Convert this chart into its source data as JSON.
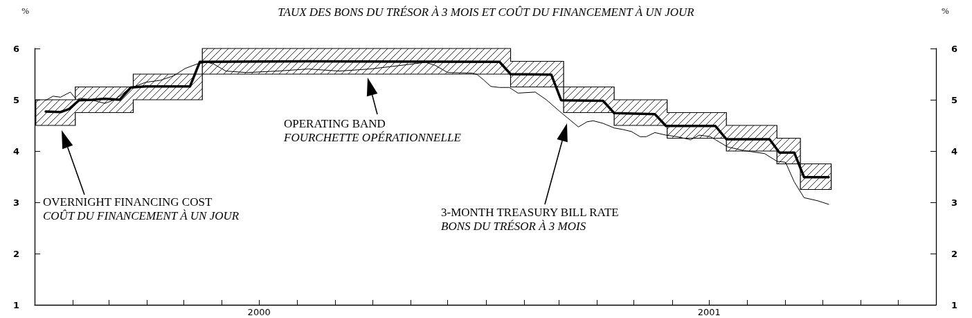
{
  "chart_data": {
    "type": "line",
    "title": "TAUX DES BONS DU TRÉSOR À 3 MOIS ET COÛT DU FINANCEMENT À UN JOUR",
    "ylabel": "%",
    "y2label": "%",
    "xlim": [
      "2000-01-01",
      "2002-01-01"
    ],
    "xticks": [
      {
        "value": "2000-01-01",
        "label": null
      },
      {
        "value": "2000-02-01",
        "label": null
      },
      {
        "value": "2000-03-01",
        "label": null
      },
      {
        "value": "2000-04-01",
        "label": null
      },
      {
        "value": "2000-05-01",
        "label": null
      },
      {
        "value": "2000-06-01",
        "label": null
      },
      {
        "value": "2000-07-01",
        "label": "2000"
      },
      {
        "value": "2000-08-01",
        "label": null
      },
      {
        "value": "2000-09-01",
        "label": null
      },
      {
        "value": "2000-10-01",
        "label": null
      },
      {
        "value": "2000-11-01",
        "label": null
      },
      {
        "value": "2000-12-01",
        "label": null
      },
      {
        "value": "2001-01-01",
        "label": null
      },
      {
        "value": "2001-02-01",
        "label": null
      },
      {
        "value": "2001-03-01",
        "label": null
      },
      {
        "value": "2001-04-01",
        "label": null
      },
      {
        "value": "2001-05-01",
        "label": null
      },
      {
        "value": "2001-06-01",
        "label": null
      },
      {
        "value": "2001-07-01",
        "label": "2001"
      },
      {
        "value": "2001-08-01",
        "label": null
      },
      {
        "value": "2001-09-01",
        "label": null
      },
      {
        "value": "2001-10-01",
        "label": null
      },
      {
        "value": "2001-11-01",
        "label": null
      },
      {
        "value": "2001-12-01",
        "label": null
      },
      {
        "value": "2002-01-01",
        "label": null
      }
    ],
    "ylim": [
      1,
      6
    ],
    "yticks": [
      1,
      2,
      3,
      4,
      5,
      6
    ],
    "y2lim": [
      1,
      6
    ],
    "y2ticks": [
      1,
      2,
      3,
      4,
      5,
      6
    ],
    "grid": false,
    "legend": false,
    "marker": "none",
    "series": [
      {
        "type": "step",
        "color": "#000000",
        "x": [
          "2000-01-02",
          "2000-02-03",
          "2000-03-21",
          "2000-05-16",
          "2001-01-21",
          "2001-03-05",
          "2001-04-15",
          "2001-05-28",
          "2001-07-15",
          "2001-08-25",
          "2001-09-13",
          "2001-10-08"
        ],
        "values": [
          null,
          null,
          null,
          null,
          null,
          null,
          null,
          null,
          null,
          null,
          null,
          null
        ],
        "lower": [
          4.5,
          4.75,
          5.0,
          5.5,
          5.25,
          4.75,
          4.5,
          4.25,
          4.0,
          3.75,
          3.25,
          3.25
        ],
        "upper": [
          5.0,
          5.25,
          5.5,
          6.0,
          5.75,
          5.25,
          5.0,
          4.75,
          4.5,
          4.25,
          3.75,
          3.75
        ]
      },
      {
        "color": "#000000",
        "x": [
          "2000-01-10",
          "2000-01-16",
          "2000-01-22",
          "2000-01-30",
          "2000-02-04",
          "2000-02-07",
          "2000-02-17",
          "2000-02-27",
          "2000-03-06",
          "2000-03-18",
          "2000-03-31",
          "2000-04-12",
          "2000-04-23",
          "2000-05-02",
          "2000-05-12",
          "2000-05-20",
          "2000-05-25",
          "2000-06-04",
          "2000-06-21",
          "2000-07-16",
          "2000-08-10",
          "2000-09-04",
          "2000-09-29",
          "2000-10-24",
          "2000-11-13",
          "2000-11-21",
          "2000-12-01",
          "2000-12-21",
          "2000-12-25",
          "2000-12-30",
          "2001-01-05",
          "2001-01-12",
          "2001-01-20",
          "2001-01-27",
          "2001-02-10",
          "2001-02-19",
          "2001-03-02",
          "2001-03-17",
          "2001-03-24",
          "2001-03-29",
          "2001-04-06",
          "2001-04-15",
          "2001-04-22",
          "2001-04-29",
          "2001-05-06",
          "2001-05-11",
          "2001-05-18",
          "2001-05-27",
          "2001-06-05",
          "2001-06-16",
          "2001-06-23",
          "2001-07-02",
          "2001-07-16",
          "2001-07-29",
          "2001-08-15",
          "2001-08-25",
          "2001-09-01",
          "2001-09-08",
          "2001-09-16",
          "2001-09-27",
          "2001-10-06"
        ],
        "values": [
          4.99,
          5.07,
          5.05,
          5.15,
          5.0,
          5.03,
          4.99,
          4.93,
          5.0,
          5.22,
          5.34,
          5.38,
          5.47,
          5.61,
          5.7,
          5.73,
          5.7,
          5.56,
          5.53,
          5.56,
          5.6,
          5.56,
          5.6,
          5.67,
          5.73,
          5.67,
          5.53,
          5.52,
          5.49,
          5.39,
          5.26,
          5.24,
          5.24,
          5.13,
          5.15,
          5.0,
          4.77,
          4.47,
          4.57,
          4.59,
          4.54,
          4.45,
          4.42,
          4.38,
          4.28,
          4.28,
          4.36,
          4.31,
          4.28,
          4.22,
          4.31,
          4.28,
          4.08,
          4.01,
          3.95,
          3.8,
          3.78,
          3.4,
          3.09,
          3.03,
          2.96
        ]
      },
      {
        "color": "#000000",
        "x": [
          "2000-01-10",
          "2000-01-22",
          "2000-01-29",
          "2000-02-06",
          "2000-02-17",
          "2000-02-27",
          "2000-03-10",
          "2000-03-19",
          "2000-03-31",
          "2000-05-06",
          "2000-05-14",
          "2000-08-10",
          "2001-01-12",
          "2001-01-21",
          "2001-02-23",
          "2001-03-03",
          "2001-04-06",
          "2001-04-15",
          "2001-05-18",
          "2001-05-27",
          "2001-07-06",
          "2001-07-15",
          "2001-08-19",
          "2001-08-27",
          "2001-09-08",
          "2001-09-16",
          "2001-10-06"
        ],
        "values": [
          4.77,
          4.76,
          4.82,
          4.99,
          5.0,
          5.02,
          5.0,
          5.24,
          5.26,
          5.26,
          5.74,
          5.75,
          5.74,
          5.5,
          5.49,
          4.99,
          4.98,
          4.74,
          4.72,
          4.49,
          4.49,
          4.23,
          4.23,
          3.97,
          3.97,
          3.49,
          3.49
        ]
      }
    ],
    "annotations": [
      "OVERNIGHT FINANCING COST\nCOÛT DU FINANCEMENT À UN JOUR",
      "OPERATING BAND\nFOURCHETTE OPÉRATIONNELLE",
      "3-MONTH TREASURY BILL RATE\nBONS DU TRÉSOR À 3 MOIS"
    ]
  }
}
